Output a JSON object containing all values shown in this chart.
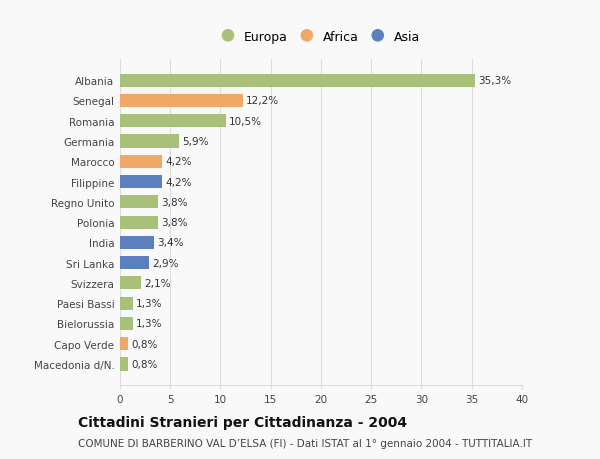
{
  "categories": [
    "Macedonia d/N.",
    "Capo Verde",
    "Bielorussia",
    "Paesi Bassi",
    "Svizzera",
    "Sri Lanka",
    "India",
    "Polonia",
    "Regno Unito",
    "Filippine",
    "Marocco",
    "Germania",
    "Romania",
    "Senegal",
    "Albania"
  ],
  "values": [
    0.8,
    0.8,
    1.3,
    1.3,
    2.1,
    2.9,
    3.4,
    3.8,
    3.8,
    4.2,
    4.2,
    5.9,
    10.5,
    12.2,
    35.3
  ],
  "labels": [
    "0,8%",
    "0,8%",
    "1,3%",
    "1,3%",
    "2,1%",
    "2,9%",
    "3,4%",
    "3,8%",
    "3,8%",
    "4,2%",
    "4,2%",
    "5,9%",
    "10,5%",
    "12,2%",
    "35,3%"
  ],
  "colors": [
    "#a8c07a",
    "#f0a868",
    "#a8c07a",
    "#a8c07a",
    "#a8c07a",
    "#5b7fbf",
    "#5b7fbf",
    "#a8c07a",
    "#a8c07a",
    "#5b7fbf",
    "#f0a868",
    "#a8c07a",
    "#a8c07a",
    "#f0a868",
    "#a8c07a"
  ],
  "legend": {
    "Europa": "#a8c07a",
    "Africa": "#f0a868",
    "Asia": "#5b7fbf"
  },
  "title": "Cittadini Stranieri per Cittadinanza - 2004",
  "subtitle": "COMUNE DI BARBERINO VAL D’ELSA (FI) - Dati ISTAT al 1° gennaio 2004 - TUTTITALIA.IT",
  "xlim": [
    0,
    40
  ],
  "xticks": [
    0,
    5,
    10,
    15,
    20,
    25,
    30,
    35,
    40
  ],
  "background_color": "#f9f9f9",
  "grid_color": "#dddddd",
  "bar_height": 0.65,
  "label_fontsize": 7.5,
  "title_fontsize": 10,
  "subtitle_fontsize": 7.5,
  "tick_fontsize": 7.5,
  "legend_fontsize": 9
}
